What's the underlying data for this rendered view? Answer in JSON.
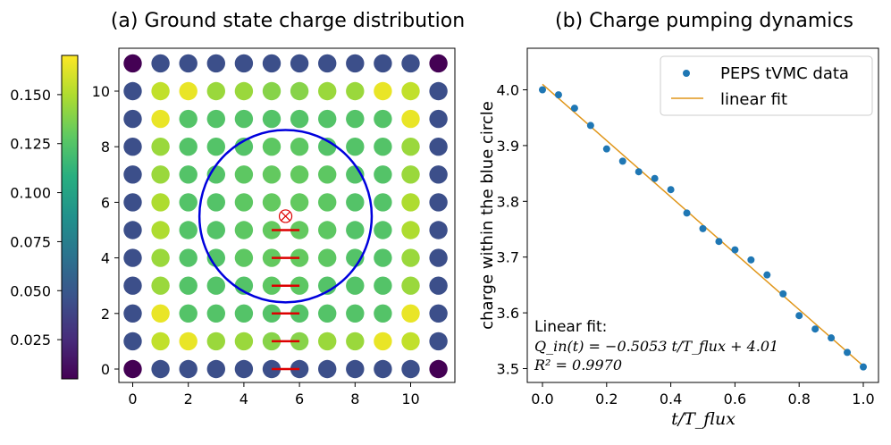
{
  "chart_data": [
    {
      "type": "heatmap",
      "title": "(a) Ground state charge distribution",
      "xlabel": "",
      "ylabel": "",
      "x_ticks": [
        0,
        2,
        4,
        6,
        8,
        10
      ],
      "y_ticks": [
        0,
        2,
        4,
        6,
        8,
        10
      ],
      "xlim": [
        -0.5,
        11.5
      ],
      "ylim": [
        -0.5,
        11.5
      ],
      "grid": false,
      "colormap": "viridis",
      "colorbar": {
        "range": [
          0.005,
          0.17
        ],
        "ticks": [
          0.025,
          0.05,
          0.075,
          0.1,
          0.125,
          0.15
        ],
        "tick_labels": [
          "0.025",
          "0.050",
          "0.075",
          "0.100",
          "0.125",
          "0.150"
        ]
      },
      "rows_top_to_bottom": [
        [
          0.005,
          0.045,
          0.045,
          0.045,
          0.045,
          0.045,
          0.045,
          0.045,
          0.045,
          0.045,
          0.045,
          0.005
        ],
        [
          0.045,
          0.155,
          0.165,
          0.145,
          0.145,
          0.14,
          0.14,
          0.145,
          0.145,
          0.165,
          0.155,
          0.045
        ],
        [
          0.045,
          0.165,
          0.125,
          0.125,
          0.125,
          0.125,
          0.125,
          0.125,
          0.125,
          0.125,
          0.165,
          0.045
        ],
        [
          0.045,
          0.145,
          0.125,
          0.125,
          0.125,
          0.128,
          0.128,
          0.125,
          0.125,
          0.125,
          0.145,
          0.045
        ],
        [
          0.045,
          0.145,
          0.125,
          0.125,
          0.128,
          0.13,
          0.13,
          0.128,
          0.125,
          0.125,
          0.145,
          0.045
        ],
        [
          0.045,
          0.15,
          0.125,
          0.125,
          0.128,
          0.13,
          0.13,
          0.128,
          0.125,
          0.125,
          0.15,
          0.045
        ],
        [
          0.045,
          0.15,
          0.125,
          0.125,
          0.128,
          0.13,
          0.13,
          0.128,
          0.125,
          0.125,
          0.15,
          0.045
        ],
        [
          0.045,
          0.145,
          0.125,
          0.125,
          0.128,
          0.13,
          0.13,
          0.128,
          0.125,
          0.125,
          0.145,
          0.045
        ],
        [
          0.045,
          0.145,
          0.125,
          0.125,
          0.125,
          0.128,
          0.128,
          0.125,
          0.125,
          0.125,
          0.145,
          0.045
        ],
        [
          0.045,
          0.165,
          0.125,
          0.125,
          0.125,
          0.125,
          0.125,
          0.125,
          0.125,
          0.125,
          0.165,
          0.045
        ],
        [
          0.045,
          0.155,
          0.165,
          0.145,
          0.145,
          0.14,
          0.14,
          0.145,
          0.145,
          0.165,
          0.155,
          0.045
        ],
        [
          0.005,
          0.045,
          0.045,
          0.045,
          0.045,
          0.045,
          0.045,
          0.045,
          0.045,
          0.045,
          0.045,
          0.005
        ]
      ],
      "blue_circle": {
        "center": [
          5.5,
          5.5
        ],
        "radius": 3.1,
        "color": "#0000dd"
      },
      "flux_marker": {
        "x": 5.5,
        "y": 5.5,
        "symbol": "⊗",
        "color": "#dd0000"
      },
      "red_segments": [
        {
          "x": [
            5,
            6
          ],
          "y": 0
        },
        {
          "x": [
            5,
            6
          ],
          "y": 1
        },
        {
          "x": [
            5,
            6
          ],
          "y": 2
        },
        {
          "x": [
            5,
            6
          ],
          "y": 3
        },
        {
          "x": [
            5,
            6
          ],
          "y": 4
        },
        {
          "x": [
            5,
            6
          ],
          "y": 5
        }
      ]
    },
    {
      "type": "scatter",
      "title": "(b) Charge pumping dynamics",
      "xlabel": "t/T_flux",
      "ylabel": "charge within the blue circle",
      "xlim": [
        -0.03,
        1.03
      ],
      "ylim": [
        3.48,
        4.03
      ],
      "x_ticks": [
        "0.0",
        "0.2",
        "0.4",
        "0.6",
        "0.8",
        "1.0"
      ],
      "y_ticks": [
        "3.5",
        "3.6",
        "3.7",
        "3.8",
        "3.9",
        "4.0"
      ],
      "grid": false,
      "legend_position": "top-right",
      "legend": [
        "PEPS tVMC data",
        "linear fit"
      ],
      "series": [
        {
          "name": "PEPS tVMC data",
          "color": "#1f77b4",
          "x": [
            0.0,
            0.05,
            0.1,
            0.15,
            0.2,
            0.25,
            0.3,
            0.35,
            0.4,
            0.45,
            0.5,
            0.55,
            0.6,
            0.65,
            0.7,
            0.75,
            0.8,
            0.85,
            0.9,
            0.95,
            1.0
          ],
          "y": [
            4.0,
            3.991,
            3.967,
            3.936,
            3.894,
            3.872,
            3.853,
            3.841,
            3.821,
            3.779,
            3.751,
            3.728,
            3.713,
            3.695,
            3.668,
            3.634,
            3.595,
            3.571,
            3.555,
            3.529,
            3.503
          ]
        },
        {
          "name": "linear fit",
          "color": "#e0961a",
          "x": [
            0.0,
            1.0
          ],
          "y": [
            4.01,
            3.5047
          ]
        }
      ],
      "annotation": {
        "heading": "Linear fit:",
        "equation": "Q_in(t) = −0.5053 t/T_flux + 4.01",
        "r_squared": "R² = 0.9970"
      }
    }
  ]
}
